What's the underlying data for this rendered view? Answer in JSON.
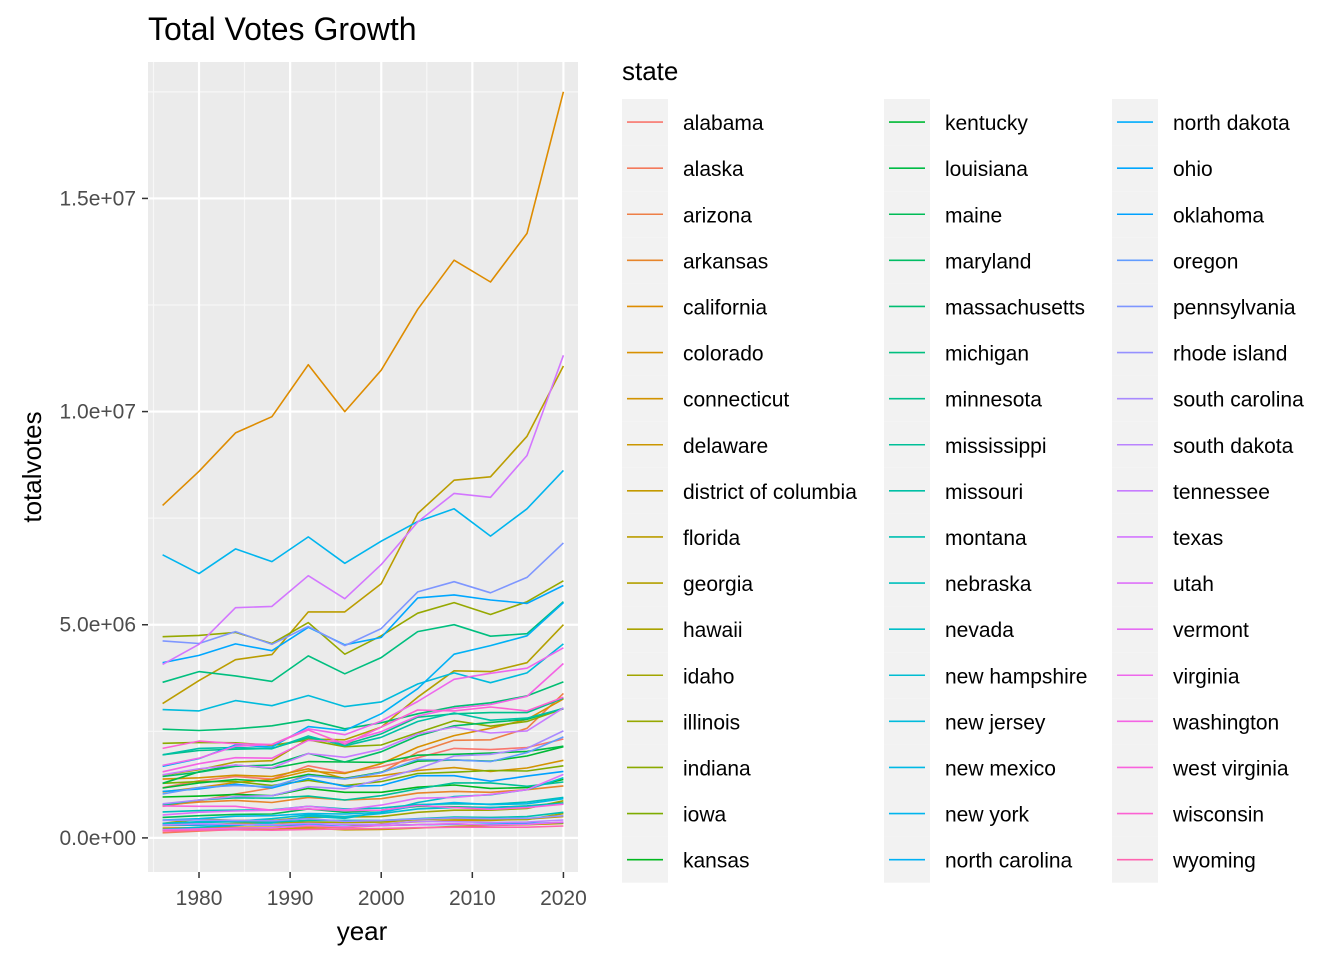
{
  "chart_data": {
    "type": "line",
    "title": "Total Votes Growth",
    "xlabel": "year",
    "ylabel": "totalvotes",
    "legend_title": "state",
    "legend_position": "right",
    "grid": true,
    "xlim": [
      1974.4,
      2021.6
    ],
    "ylim": [
      -800000,
      18200000
    ],
    "x_ticks": [
      1980,
      1990,
      2000,
      2010,
      2020
    ],
    "x_tick_labels": [
      "1980",
      "1990",
      "2000",
      "2010",
      "2020"
    ],
    "y_ticks": [
      0,
      5000000,
      10000000,
      15000000
    ],
    "y_tick_labels": [
      "0.0e+00",
      "5.0e+06",
      "1.0e+07",
      "1.5e+07"
    ],
    "x": [
      1976,
      1980,
      1984,
      1988,
      1992,
      1996,
      2000,
      2004,
      2008,
      2012,
      2016,
      2020
    ],
    "series": [
      {
        "name": "alabama",
        "color": "#F8766D",
        "values": [
          1180000,
          1340000,
          1440000,
          1380000,
          1690000,
          1530000,
          1670000,
          1880000,
          2100000,
          2070000,
          2120000,
          2320000
        ]
      },
      {
        "name": "alaska",
        "color": "#F47A5B",
        "values": [
          120000,
          160000,
          200000,
          200000,
          260000,
          240000,
          290000,
          310000,
          330000,
          300000,
          320000,
          360000
        ]
      },
      {
        "name": "arizona",
        "color": "#EE7F47",
        "values": [
          740000,
          870000,
          1030000,
          1170000,
          1490000,
          1400000,
          1530000,
          2010000,
          2290000,
          2300000,
          2570000,
          3390000
        ]
      },
      {
        "name": "arkansas",
        "color": "#E7852B",
        "values": [
          770000,
          840000,
          880000,
          830000,
          950000,
          890000,
          920000,
          1050000,
          1090000,
          1070000,
          1130000,
          1220000
        ]
      },
      {
        "name": "california",
        "color": "#DE8C00",
        "values": [
          7800000,
          8600000,
          9500000,
          9880000,
          11100000,
          10000000,
          10970000,
          12400000,
          13550000,
          13040000,
          14180000,
          17500000
        ]
      },
      {
        "name": "colorado",
        "color": "#D89000",
        "values": [
          1080000,
          1180000,
          1300000,
          1370000,
          1570000,
          1510000,
          1740000,
          2130000,
          2400000,
          2570000,
          2780000,
          3260000
        ]
      },
      {
        "name": "connecticut",
        "color": "#D29300",
        "values": [
          1380000,
          1410000,
          1470000,
          1440000,
          1620000,
          1390000,
          1460000,
          1580000,
          1650000,
          1560000,
          1640000,
          1820000
        ]
      },
      {
        "name": "delaware",
        "color": "#CB9700",
        "values": [
          230000,
          240000,
          250000,
          250000,
          290000,
          270000,
          330000,
          380000,
          410000,
          410000,
          440000,
          500000
        ]
      },
      {
        "name": "district of columbia",
        "color": "#C49A00",
        "values": [
          170000,
          180000,
          210000,
          190000,
          230000,
          190000,
          200000,
          230000,
          270000,
          290000,
          310000,
          340000
        ]
      },
      {
        "name": "florida",
        "color": "#BB9D00",
        "values": [
          3150000,
          3690000,
          4180000,
          4300000,
          5300000,
          5300000,
          5960000,
          7610000,
          8390000,
          8470000,
          9420000,
          11070000
        ]
      },
      {
        "name": "georgia",
        "color": "#B3A000",
        "values": [
          1470000,
          1600000,
          1780000,
          1810000,
          2320000,
          2300000,
          2600000,
          3300000,
          3920000,
          3900000,
          4110000,
          5000000
        ]
      },
      {
        "name": "hawaii",
        "color": "#AAA300",
        "values": [
          290000,
          300000,
          340000,
          350000,
          370000,
          360000,
          370000,
          430000,
          450000,
          430000,
          430000,
          570000
        ]
      },
      {
        "name": "idaho",
        "color": "#A1A500",
        "values": [
          340000,
          440000,
          410000,
          410000,
          480000,
          490000,
          500000,
          600000,
          650000,
          650000,
          690000,
          870000
        ]
      },
      {
        "name": "illinois",
        "color": "#96A800",
        "values": [
          4720000,
          4750000,
          4820000,
          4560000,
          5050000,
          4310000,
          4740000,
          5270000,
          5520000,
          5240000,
          5540000,
          6030000
        ]
      },
      {
        "name": "indiana",
        "color": "#8BAA00",
        "values": [
          2220000,
          2240000,
          2230000,
          2170000,
          2300000,
          2140000,
          2180000,
          2470000,
          2750000,
          2620000,
          2730000,
          3030000
        ]
      },
      {
        "name": "iowa",
        "color": "#7EAC00",
        "values": [
          1280000,
          1320000,
          1320000,
          1230000,
          1350000,
          1230000,
          1320000,
          1510000,
          1540000,
          1580000,
          1570000,
          1690000
        ]
      },
      {
        "name": "kansas",
        "color": "#00B81F",
        "values": [
          960000,
          980000,
          1020000,
          990000,
          1160000,
          1070000,
          1070000,
          1190000,
          1240000,
          1160000,
          1180000,
          1370000
        ]
      },
      {
        "name": "kentucky",
        "color": "#00B935",
        "values": [
          1170000,
          1290000,
          1370000,
          1320000,
          1490000,
          1390000,
          1540000,
          1800000,
          1830000,
          1800000,
          1920000,
          2140000
        ]
      },
      {
        "name": "louisiana",
        "color": "#00BB45",
        "values": [
          1280000,
          1550000,
          1710000,
          1630000,
          1790000,
          1780000,
          1770000,
          1940000,
          1960000,
          1990000,
          2030000,
          2150000
        ]
      },
      {
        "name": "maine",
        "color": "#00BC56",
        "values": [
          480000,
          520000,
          550000,
          560000,
          680000,
          600000,
          650000,
          740000,
          730000,
          710000,
          750000,
          820000
        ]
      },
      {
        "name": "maryland",
        "color": "#00BD64",
        "values": [
          1440000,
          1540000,
          1680000,
          1710000,
          1980000,
          1780000,
          2020000,
          2390000,
          2630000,
          2710000,
          2780000,
          3040000
        ]
      },
      {
        "name": "massachusetts",
        "color": "#00BE72",
        "values": [
          2550000,
          2520000,
          2560000,
          2630000,
          2770000,
          2560000,
          2700000,
          2910000,
          3080000,
          3170000,
          3330000,
          3660000
        ]
      },
      {
        "name": "michigan",
        "color": "#00BF7F",
        "values": [
          3650000,
          3900000,
          3800000,
          3670000,
          4270000,
          3850000,
          4230000,
          4840000,
          5000000,
          4730000,
          4790000,
          5540000
        ]
      },
      {
        "name": "minnesota",
        "color": "#00C08C",
        "values": [
          1950000,
          2050000,
          2080000,
          2100000,
          2350000,
          2190000,
          2440000,
          2830000,
          2910000,
          2940000,
          2940000,
          3280000
        ]
      },
      {
        "name": "mississippi",
        "color": "#00C098",
        "values": [
          770000,
          890000,
          940000,
          930000,
          980000,
          890000,
          990000,
          1150000,
          1290000,
          1290000,
          1210000,
          1310000
        ]
      },
      {
        "name": "missouri",
        "color": "#00C0A5",
        "values": [
          1950000,
          2100000,
          2120000,
          2090000,
          2390000,
          2160000,
          2360000,
          2730000,
          2930000,
          2760000,
          2810000,
          3030000
        ]
      },
      {
        "name": "montana",
        "color": "#00C0B1",
        "values": [
          330000,
          360000,
          380000,
          370000,
          410000,
          410000,
          410000,
          450000,
          490000,
          480000,
          500000,
          600000
        ]
      },
      {
        "name": "nebraska",
        "color": "#00BFBC",
        "values": [
          610000,
          640000,
          650000,
          660000,
          740000,
          680000,
          700000,
          780000,
          800000,
          790000,
          840000,
          950000
        ]
      },
      {
        "name": "nevada",
        "color": "#00BEC8",
        "values": [
          200000,
          250000,
          290000,
          350000,
          510000,
          460000,
          610000,
          830000,
          970000,
          1010000,
          1130000,
          1410000
        ]
      },
      {
        "name": "new hampshire",
        "color": "#00BDD2",
        "values": [
          340000,
          380000,
          390000,
          450000,
          540000,
          500000,
          570000,
          680000,
          710000,
          710000,
          740000,
          810000
        ]
      },
      {
        "name": "new jersey",
        "color": "#00BBDC",
        "values": [
          3010000,
          2980000,
          3220000,
          3100000,
          3340000,
          3080000,
          3190000,
          3610000,
          3870000,
          3640000,
          3870000,
          4550000
        ]
      },
      {
        "name": "new mexico",
        "color": "#00B9E5",
        "values": [
          420000,
          450000,
          510000,
          520000,
          570000,
          560000,
          600000,
          760000,
          830000,
          780000,
          800000,
          920000
        ]
      },
      {
        "name": "new york",
        "color": "#00B5EE",
        "values": [
          6640000,
          6200000,
          6780000,
          6480000,
          7060000,
          6440000,
          6960000,
          7420000,
          7720000,
          7080000,
          7720000,
          8620000
        ]
      },
      {
        "name": "north carolina",
        "color": "#00B1F5",
        "values": [
          1680000,
          1860000,
          2180000,
          2130000,
          2610000,
          2520000,
          2910000,
          3500000,
          4310000,
          4510000,
          4740000,
          5520000
        ]
      },
      {
        "name": "north dakota",
        "color": "#00ACFC",
        "values": [
          300000,
          300000,
          310000,
          300000,
          310000,
          270000,
          290000,
          310000,
          320000,
          320000,
          340000,
          360000
        ]
      },
      {
        "name": "ohio",
        "color": "#00A7FF",
        "values": [
          4110000,
          4280000,
          4550000,
          4390000,
          4940000,
          4530000,
          4700000,
          5630000,
          5700000,
          5580000,
          5500000,
          5920000
        ]
      },
      {
        "name": "oklahoma",
        "color": "#00A1FF",
        "values": [
          1090000,
          1150000,
          1260000,
          1170000,
          1390000,
          1210000,
          1230000,
          1460000,
          1460000,
          1330000,
          1450000,
          1560000
        ]
      },
      {
        "name": "oregon",
        "color": "#619CFF",
        "values": [
          1030000,
          1180000,
          1230000,
          1200000,
          1460000,
          1380000,
          1530000,
          1840000,
          1830000,
          1790000,
          2000000,
          2370000
        ]
      },
      {
        "name": "pennsylvania",
        "color": "#7E96FF",
        "values": [
          4620000,
          4560000,
          4840000,
          4540000,
          4960000,
          4510000,
          4910000,
          5770000,
          6010000,
          5750000,
          6110000,
          6920000
        ]
      },
      {
        "name": "rhode island",
        "color": "#9590FF",
        "values": [
          410000,
          420000,
          410000,
          400000,
          450000,
          390000,
          410000,
          440000,
          470000,
          450000,
          460000,
          520000
        ]
      },
      {
        "name": "south carolina",
        "color": "#A98AFF",
        "values": [
          800000,
          890000,
          970000,
          990000,
          1200000,
          1150000,
          1380000,
          1620000,
          1920000,
          1960000,
          2100000,
          2510000
        ]
      },
      {
        "name": "south dakota",
        "color": "#BA84FF",
        "values": [
          300000,
          330000,
          320000,
          310000,
          340000,
          320000,
          320000,
          390000,
          380000,
          360000,
          370000,
          420000
        ]
      },
      {
        "name": "tennessee",
        "color": "#C77CFF",
        "values": [
          1480000,
          1620000,
          1710000,
          1640000,
          1980000,
          1890000,
          2080000,
          2440000,
          2600000,
          2460000,
          2510000,
          3050000
        ]
      },
      {
        "name": "texas",
        "color": "#D376FF",
        "values": [
          4070000,
          4540000,
          5400000,
          5430000,
          6150000,
          5610000,
          6410000,
          7410000,
          8080000,
          7990000,
          8970000,
          11320000
        ]
      },
      {
        "name": "utah",
        "color": "#DE71F9",
        "values": [
          540000,
          600000,
          630000,
          650000,
          740000,
          660000,
          770000,
          930000,
          950000,
          1020000,
          1130000,
          1490000
        ]
      },
      {
        "name": "vermont",
        "color": "#E66CF4",
        "values": [
          190000,
          210000,
          230000,
          240000,
          290000,
          260000,
          290000,
          310000,
          330000,
          300000,
          320000,
          370000
        ]
      },
      {
        "name": "virginia",
        "color": "#EE67EC",
        "values": [
          1700000,
          1870000,
          2150000,
          2190000,
          2560000,
          2420000,
          2740000,
          3200000,
          3720000,
          3860000,
          3980000,
          4460000
        ]
      },
      {
        "name": "washington",
        "color": "#F463E4",
        "values": [
          1550000,
          1740000,
          1880000,
          1870000,
          2290000,
          2250000,
          2490000,
          2860000,
          3040000,
          3130000,
          3320000,
          4090000
        ]
      },
      {
        "name": "west virginia",
        "color": "#F962DD",
        "values": [
          750000,
          740000,
          740000,
          650000,
          680000,
          640000,
          650000,
          760000,
          710000,
          670000,
          710000,
          790000
        ]
      },
      {
        "name": "wisconsin",
        "color": "#FC61D3",
        "values": [
          2100000,
          2270000,
          2210000,
          2190000,
          2530000,
          2200000,
          2600000,
          3000000,
          2980000,
          3070000,
          2980000,
          3300000
        ]
      },
      {
        "name": "wyoming",
        "color": "#FF64B0",
        "values": [
          160000,
          180000,
          190000,
          180000,
          200000,
          210000,
          220000,
          240000,
          250000,
          250000,
          250000,
          280000
        ]
      }
    ]
  }
}
